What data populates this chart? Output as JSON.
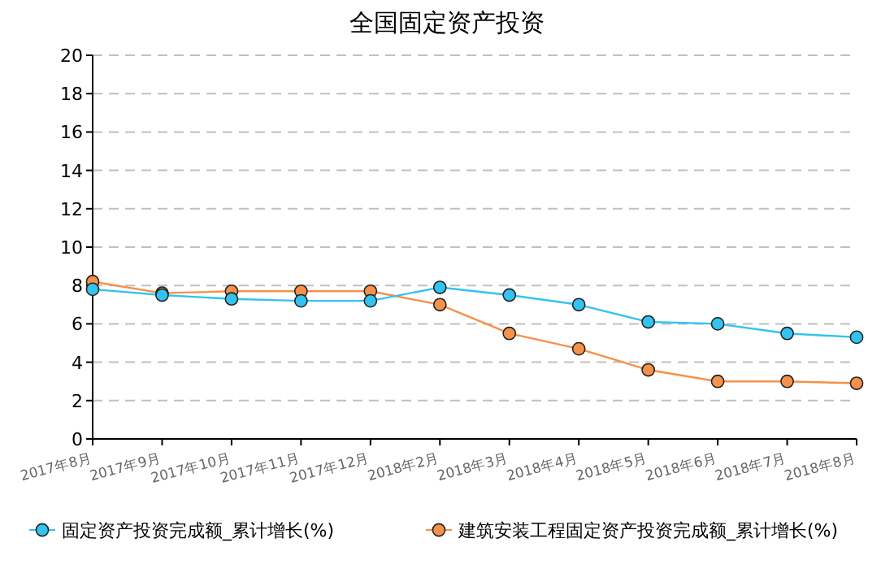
{
  "chart_data": {
    "type": "line",
    "title": "全国固定资产投资",
    "categories": [
      "2017年8月",
      "2017年9月",
      "2017年10月",
      "2017年11月",
      "2017年12月",
      "2018年2月",
      "2018年3月",
      "2018年4月",
      "2018年5月",
      "2018年6月",
      "2018年7月",
      "2018年8月"
    ],
    "series": [
      {
        "name": "固定资产投资完成额_累计增长(%)",
        "color": "#33c3f0",
        "values": [
          7.8,
          7.5,
          7.3,
          7.2,
          7.2,
          7.9,
          7.5,
          7.0,
          6.1,
          6.0,
          5.5,
          5.3
        ]
      },
      {
        "name": "建筑安装工程固定资产投资完成额_累计增长(%)",
        "color": "#f5914a",
        "values": [
          8.2,
          7.6,
          7.7,
          7.7,
          7.7,
          7.0,
          5.5,
          4.7,
          3.6,
          3.0,
          3.0,
          2.9
        ]
      }
    ],
    "ylim": [
      0,
      20
    ],
    "yticks": [
      0,
      2,
      4,
      6,
      8,
      10,
      12,
      14,
      16,
      18,
      20
    ],
    "grid": "y",
    "legend": "bottom",
    "marker": "circle"
  }
}
